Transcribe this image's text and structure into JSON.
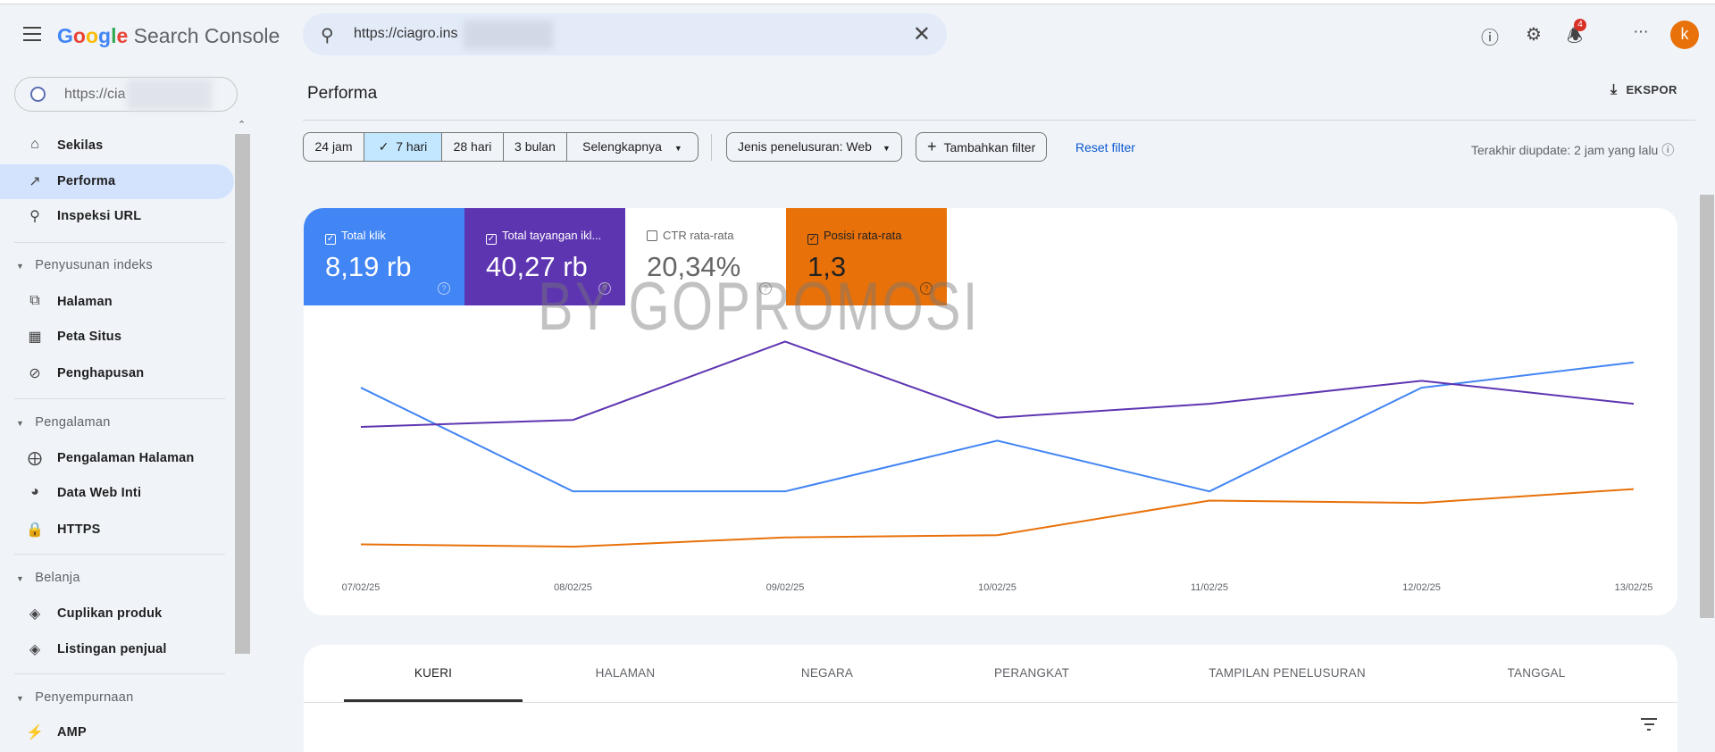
{
  "header": {
    "logo_google": "Google",
    "logo_product": "Search Console",
    "search_value": "https://ciagro.ins",
    "notification_count": "4",
    "avatar_letter": "k"
  },
  "sidebar": {
    "property": "https://cia",
    "top_items": [
      {
        "label": "Sekilas",
        "icon": "home-icon"
      },
      {
        "label": "Performa",
        "icon": "trending-up-icon",
        "active": true
      },
      {
        "label": "Inspeksi URL",
        "icon": "search-icon"
      }
    ],
    "sections": [
      {
        "title": "Penyusunan indeks",
        "items": [
          {
            "label": "Halaman"
          },
          {
            "label": "Peta Situs"
          },
          {
            "label": "Penghapusan"
          }
        ]
      },
      {
        "title": "Pengalaman",
        "items": [
          {
            "label": "Pengalaman Halaman"
          },
          {
            "label": "Data Web Inti"
          },
          {
            "label": "HTTPS"
          }
        ]
      },
      {
        "title": "Belanja",
        "items": [
          {
            "label": "Cuplikan produk"
          },
          {
            "label": "Listingan penjual"
          }
        ]
      },
      {
        "title": "Penyempurnaan",
        "items": [
          {
            "label": "AMP"
          }
        ]
      }
    ]
  },
  "main": {
    "title": "Performa",
    "export_label": "EKSPOR",
    "date_ranges": [
      "24 jam",
      "7 hari",
      "28 hari",
      "3 bulan",
      "Selengkapnya"
    ],
    "selected_range": "7 hari",
    "search_type": "Jenis penelusuran: Web",
    "add_filter": "Tambahkan filter",
    "reset_filter": "Reset filter",
    "last_updated": "Terakhir diupdate: 2 jam yang lalu",
    "watermark": "BY GOPROMOSI",
    "metrics": [
      {
        "label": "Total klik",
        "value": "8,19 rb",
        "checked": true,
        "color": "#4285f4"
      },
      {
        "label": "Total tayangan ikl...",
        "value": "40,27 rb",
        "checked": true,
        "color": "#5e35b1"
      },
      {
        "label": "CTR rata-rata",
        "value": "20,34%",
        "checked": false,
        "color": "#ffffff"
      },
      {
        "label": "Posisi rata-rata",
        "value": "1,3",
        "checked": true,
        "color": "#e8710a"
      }
    ],
    "tabs": [
      "KUERI",
      "HALAMAN",
      "NEGARA",
      "PERANGKAT",
      "TAMPILAN PENELUSURAN",
      "TANGGAL"
    ],
    "active_tab": "KUERI"
  },
  "chart_data": {
    "type": "line",
    "x": [
      "07/02/25",
      "08/02/25",
      "09/02/25",
      "10/02/25",
      "11/02/25",
      "12/02/25",
      "13/02/25"
    ],
    "series": [
      {
        "color": "#4285f4",
        "values": [
          74,
          29,
          29,
          51,
          29,
          74,
          85
        ]
      },
      {
        "color": "#5e35b1",
        "values": [
          57,
          60,
          94,
          61,
          67,
          77,
          67
        ]
      },
      {
        "color": "#e8710a",
        "values": [
          6,
          5,
          9,
          10,
          25,
          24,
          30
        ]
      }
    ],
    "ylim": [
      0,
      100
    ],
    "grid": false,
    "legend": "none"
  }
}
